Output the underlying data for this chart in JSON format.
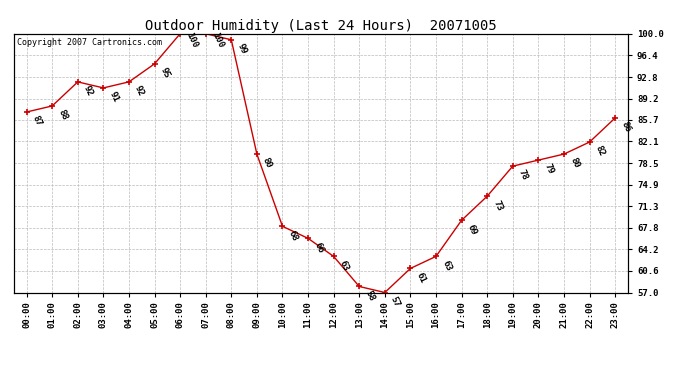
{
  "title": "Outdoor Humidity (Last 24 Hours)  20071005",
  "copyright_text": "Copyright 2007 Cartronics.com",
  "hours": [
    0,
    1,
    2,
    3,
    4,
    5,
    6,
    7,
    8,
    9,
    10,
    11,
    12,
    13,
    14,
    15,
    16,
    17,
    18,
    19,
    20,
    21,
    22,
    23
  ],
  "values": [
    87,
    88,
    92,
    91,
    92,
    95,
    100,
    100,
    99,
    80,
    68,
    66,
    63,
    58,
    57,
    61,
    63,
    69,
    73,
    78,
    79,
    80,
    82,
    86
  ],
  "hour_labels": [
    "00:00",
    "01:00",
    "02:00",
    "03:00",
    "04:00",
    "05:00",
    "06:00",
    "07:00",
    "08:00",
    "09:00",
    "10:00",
    "11:00",
    "12:00",
    "13:00",
    "14:00",
    "15:00",
    "16:00",
    "17:00",
    "18:00",
    "19:00",
    "20:00",
    "21:00",
    "22:00",
    "23:00"
  ],
  "yticks": [
    57.0,
    60.6,
    64.2,
    67.8,
    71.3,
    74.9,
    78.5,
    82.1,
    85.7,
    89.2,
    92.8,
    96.4,
    100.0
  ],
  "ylim": [
    57.0,
    100.0
  ],
  "line_color": "#cc0000",
  "marker_color": "#cc0000",
  "bg_color": "#ffffff",
  "plot_bg_color": "#ffffff",
  "grid_color": "#bbbbbb",
  "title_fontsize": 10,
  "label_fontsize": 6.5,
  "tick_fontsize": 6.5,
  "copyright_fontsize": 6.0
}
